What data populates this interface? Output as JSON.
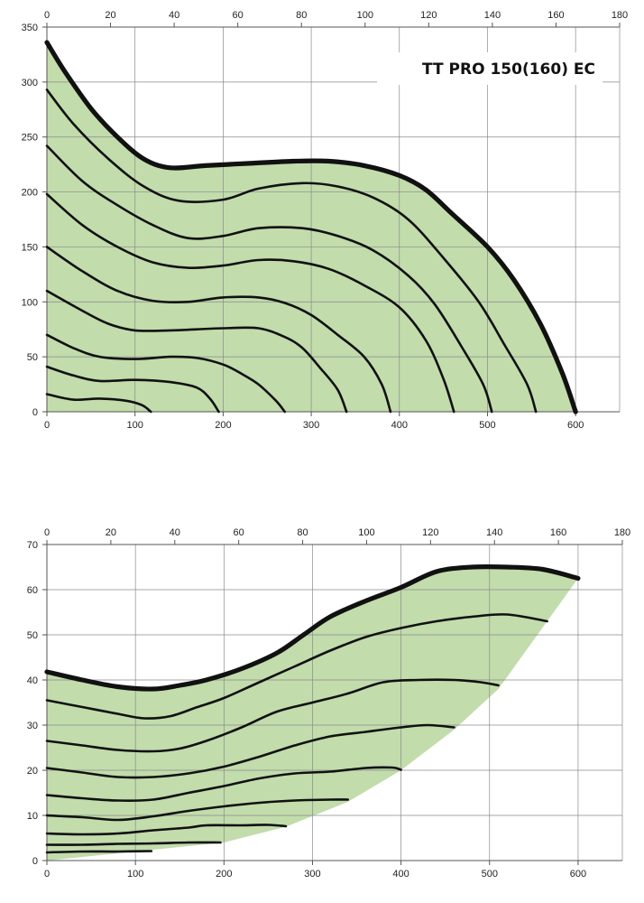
{
  "chart_data": [
    {
      "type": "line",
      "title": "TT PRO 150(160) EC",
      "x_bottom_ticks": [
        "0",
        "100",
        "200",
        "300",
        "400",
        "500",
        "600"
      ],
      "x_top_ticks": [
        "0",
        "20",
        "40",
        "60",
        "80",
        "100",
        "120",
        "140",
        "160",
        "180"
      ],
      "y_ticks": [
        "0",
        "50",
        "100",
        "150",
        "200",
        "250",
        "300",
        "350"
      ],
      "xlim": [
        0,
        650
      ],
      "ylim": [
        0,
        350
      ],
      "x_top_lim": [
        0,
        180
      ],
      "fill_color": "#c2dcac",
      "envelope": {
        "name": "",
        "points": [
          [
            0,
            336
          ],
          [
            20,
            310
          ],
          [
            50,
            276
          ],
          [
            80,
            250
          ],
          [
            110,
            230
          ],
          [
            140,
            222
          ],
          [
            180,
            224
          ],
          [
            230,
            226
          ],
          [
            280,
            228
          ],
          [
            320,
            228
          ],
          [
            360,
            224
          ],
          [
            400,
            215
          ],
          [
            430,
            202
          ],
          [
            460,
            180
          ],
          [
            500,
            150
          ],
          [
            530,
            120
          ],
          [
            560,
            80
          ],
          [
            585,
            35
          ],
          [
            600,
            0
          ]
        ]
      },
      "series": [
        {
          "points": [
            [
              0,
              293
            ],
            [
              30,
              262
            ],
            [
              70,
              230
            ],
            [
              110,
              205
            ],
            [
              150,
              192
            ],
            [
              200,
              193
            ],
            [
              240,
              203
            ],
            [
              290,
              208
            ],
            [
              330,
              205
            ],
            [
              370,
              195
            ],
            [
              410,
              175
            ],
            [
              450,
              140
            ],
            [
              490,
              100
            ],
            [
              520,
              60
            ],
            [
              545,
              25
            ],
            [
              555,
              0
            ]
          ]
        },
        {
          "points": [
            [
              0,
              242
            ],
            [
              40,
              210
            ],
            [
              80,
              188
            ],
            [
              120,
              170
            ],
            [
              160,
              158
            ],
            [
              200,
              160
            ],
            [
              240,
              167
            ],
            [
              290,
              167
            ],
            [
              330,
              160
            ],
            [
              370,
              147
            ],
            [
              410,
              124
            ],
            [
              440,
              98
            ],
            [
              470,
              60
            ],
            [
              495,
              25
            ],
            [
              505,
              0
            ]
          ]
        },
        {
          "points": [
            [
              0,
              198
            ],
            [
              40,
              170
            ],
            [
              80,
              150
            ],
            [
              120,
              136
            ],
            [
              160,
              131
            ],
            [
              200,
              133
            ],
            [
              240,
              138
            ],
            [
              280,
              137
            ],
            [
              320,
              130
            ],
            [
              360,
              115
            ],
            [
              400,
              95
            ],
            [
              430,
              65
            ],
            [
              450,
              30
            ],
            [
              462,
              0
            ]
          ]
        },
        {
          "points": [
            [
              0,
              150
            ],
            [
              40,
              128
            ],
            [
              80,
              110
            ],
            [
              120,
              101
            ],
            [
              160,
              100
            ],
            [
              200,
              104
            ],
            [
              240,
              104
            ],
            [
              270,
              99
            ],
            [
              300,
              88
            ],
            [
              330,
              70
            ],
            [
              360,
              50
            ],
            [
              380,
              25
            ],
            [
              390,
              0
            ]
          ]
        },
        {
          "points": [
            [
              0,
              110
            ],
            [
              40,
              92
            ],
            [
              70,
              80
            ],
            [
              100,
              74
            ],
            [
              140,
              74
            ],
            [
              170,
              75
            ],
            [
              200,
              76
            ],
            [
              240,
              76
            ],
            [
              270,
              68
            ],
            [
              290,
              58
            ],
            [
              310,
              40
            ],
            [
              330,
              20
            ],
            [
              340,
              0
            ]
          ]
        },
        {
          "points": [
            [
              0,
              70
            ],
            [
              30,
              58
            ],
            [
              60,
              50
            ],
            [
              100,
              48
            ],
            [
              140,
              50
            ],
            [
              170,
              49
            ],
            [
              200,
              43
            ],
            [
              220,
              35
            ],
            [
              240,
              25
            ],
            [
              260,
              10
            ],
            [
              270,
              0
            ]
          ]
        },
        {
          "points": [
            [
              0,
              41
            ],
            [
              30,
              33
            ],
            [
              60,
              28
            ],
            [
              100,
              29
            ],
            [
              140,
              27
            ],
            [
              170,
              22
            ],
            [
              185,
              12
            ],
            [
              195,
              0
            ]
          ]
        },
        {
          "points": [
            [
              0,
              16
            ],
            [
              30,
              11
            ],
            [
              60,
              12
            ],
            [
              90,
              10
            ],
            [
              108,
              6
            ],
            [
              118,
              0
            ]
          ]
        }
      ]
    },
    {
      "type": "line",
      "title": "",
      "x_bottom_ticks": [
        "0",
        "100",
        "200",
        "300",
        "400",
        "500",
        "600"
      ],
      "x_top_ticks": [
        "0",
        "20",
        "40",
        "60",
        "80",
        "100",
        "120",
        "140",
        "160",
        "180"
      ],
      "y_ticks": [
        "0",
        "10",
        "20",
        "30",
        "40",
        "50",
        "60",
        "70"
      ],
      "xlim": [
        0,
        650
      ],
      "ylim": [
        0,
        70
      ],
      "x_top_lim": [
        0,
        180
      ],
      "fill_color": "#c2dcac",
      "envelope": {
        "points": [
          [
            0,
            41.8
          ],
          [
            40,
            40
          ],
          [
            80,
            38.5
          ],
          [
            120,
            38
          ],
          [
            150,
            38.8
          ],
          [
            180,
            40
          ],
          [
            220,
            42.5
          ],
          [
            260,
            46
          ],
          [
            290,
            50
          ],
          [
            320,
            54
          ],
          [
            360,
            57.5
          ],
          [
            400,
            60.5
          ],
          [
            440,
            64
          ],
          [
            480,
            65
          ],
          [
            520,
            65
          ],
          [
            560,
            64.5
          ],
          [
            600,
            62.5
          ]
        ]
      },
      "lower_boundary": {
        "points": [
          [
            0,
            0
          ],
          [
            100,
            2
          ],
          [
            200,
            4
          ],
          [
            270,
            7.5
          ],
          [
            340,
            13
          ],
          [
            400,
            20
          ],
          [
            460,
            29
          ],
          [
            510,
            38
          ],
          [
            565,
            53
          ],
          [
            600,
            62.5
          ]
        ]
      },
      "series": [
        {
          "points": [
            [
              0,
              35.5
            ],
            [
              40,
              34
            ],
            [
              80,
              32.5
            ],
            [
              110,
              31.5
            ],
            [
              140,
              32
            ],
            [
              170,
              34
            ],
            [
              200,
              36
            ],
            [
              240,
              39.5
            ],
            [
              280,
              43
            ],
            [
              320,
              46.5
            ],
            [
              360,
              49.5
            ],
            [
              400,
              51.5
            ],
            [
              440,
              53
            ],
            [
              480,
              54
            ],
            [
              520,
              54.5
            ],
            [
              565,
              53
            ]
          ]
        },
        {
          "points": [
            [
              0,
              26.5
            ],
            [
              40,
              25.5
            ],
            [
              80,
              24.5
            ],
            [
              120,
              24.2
            ],
            [
              150,
              24.8
            ],
            [
              180,
              26.5
            ],
            [
              220,
              29.5
            ],
            [
              260,
              33
            ],
            [
              300,
              35
            ],
            [
              340,
              37
            ],
            [
              380,
              39.5
            ],
            [
              420,
              40
            ],
            [
              460,
              40
            ],
            [
              490,
              39.5
            ],
            [
              510,
              38.8
            ]
          ]
        },
        {
          "points": [
            [
              0,
              20.5
            ],
            [
              40,
              19.5
            ],
            [
              80,
              18.5
            ],
            [
              120,
              18.5
            ],
            [
              160,
              19.3
            ],
            [
              200,
              20.8
            ],
            [
              240,
              23
            ],
            [
              280,
              25.5
            ],
            [
              320,
              27.5
            ],
            [
              360,
              28.5
            ],
            [
              400,
              29.5
            ],
            [
              430,
              30
            ],
            [
              460,
              29.5
            ]
          ]
        },
        {
          "points": [
            [
              0,
              14.5
            ],
            [
              40,
              13.8
            ],
            [
              80,
              13.3
            ],
            [
              120,
              13.5
            ],
            [
              160,
              15
            ],
            [
              200,
              16.5
            ],
            [
              240,
              18.2
            ],
            [
              280,
              19.3
            ],
            [
              320,
              19.7
            ],
            [
              360,
              20.5
            ],
            [
              390,
              20.6
            ],
            [
              400,
              20.1
            ]
          ]
        },
        {
          "points": [
            [
              0,
              10
            ],
            [
              40,
              9.6
            ],
            [
              80,
              9
            ],
            [
              120,
              9.8
            ],
            [
              160,
              11
            ],
            [
              200,
              12
            ],
            [
              240,
              12.8
            ],
            [
              280,
              13.3
            ],
            [
              320,
              13.5
            ],
            [
              340,
              13.5
            ]
          ]
        },
        {
          "points": [
            [
              0,
              6
            ],
            [
              40,
              5.8
            ],
            [
              80,
              6
            ],
            [
              120,
              6.7
            ],
            [
              160,
              7.3
            ],
            [
              180,
              7.8
            ],
            [
              220,
              7.8
            ],
            [
              250,
              7.9
            ],
            [
              270,
              7.6
            ]
          ]
        },
        {
          "points": [
            [
              0,
              3.5
            ],
            [
              40,
              3.5
            ],
            [
              80,
              3.7
            ],
            [
              120,
              3.8
            ],
            [
              160,
              4
            ],
            [
              196,
              4
            ]
          ]
        },
        {
          "points": [
            [
              0,
              1.8
            ],
            [
              40,
              2
            ],
            [
              80,
              2
            ],
            [
              118,
              2.1
            ]
          ]
        }
      ]
    }
  ]
}
